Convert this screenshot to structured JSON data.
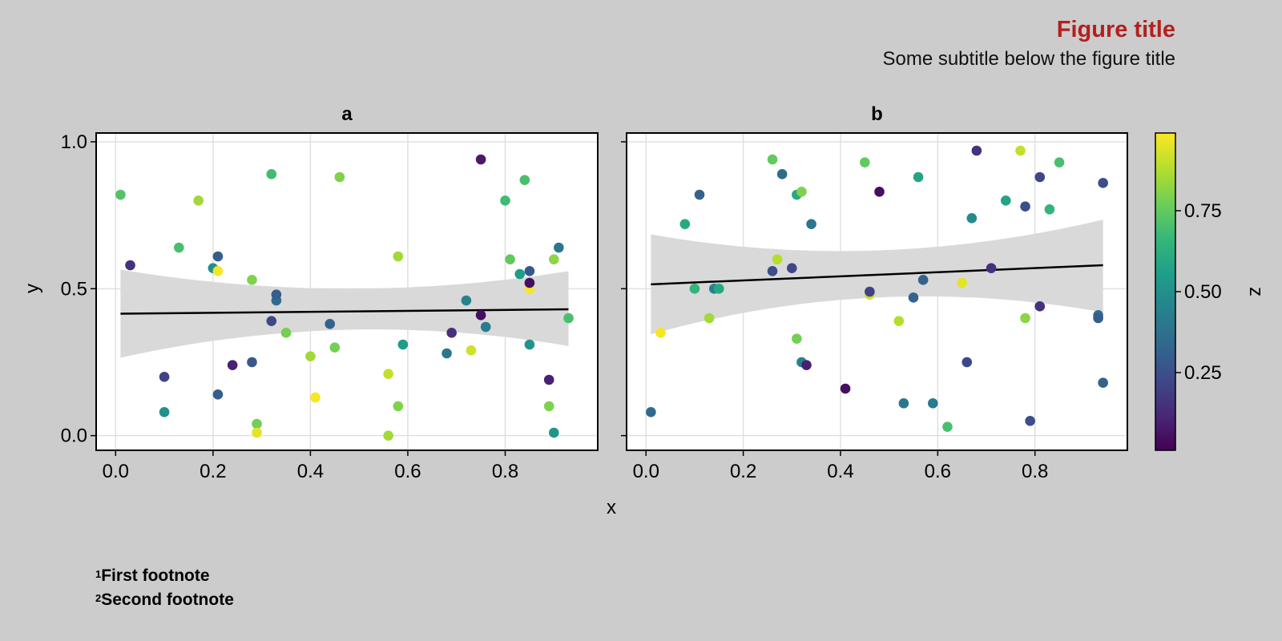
{
  "figure": {
    "title": "Figure title",
    "subtitle": "Some subtitle below the figure title",
    "footnotes": [
      {
        "mark": "1",
        "text": "First footnote"
      },
      {
        "mark": "2",
        "text": "Second footnote"
      }
    ]
  },
  "colors": {
    "background": "#cccccc",
    "panel": "#ffffff",
    "title": "#b3201f",
    "regression_line": "#000000",
    "confidence_band": "#d9d9d9",
    "grid": "#e0e0e0",
    "colormap": [
      "#440154",
      "#482878",
      "#3e4989",
      "#31688e",
      "#26828e",
      "#1f9e89",
      "#35b779",
      "#6ece58",
      "#b5de2b",
      "#fde725"
    ]
  },
  "chart_data": [
    {
      "type": "scatter",
      "panel_title": "a",
      "xlabel": "x",
      "ylabel": "y",
      "xlim": [
        -0.04,
        0.99
      ],
      "ylim": [
        -0.05,
        1.03
      ],
      "xticks": [
        "0.0",
        "0.2",
        "0.4",
        "0.6",
        "0.8"
      ],
      "xtick_values": [
        0.0,
        0.2,
        0.4,
        0.6,
        0.8
      ],
      "yticks": [
        "0.0",
        "0.5",
        "1.0"
      ],
      "ytick_values": [
        0.0,
        0.5,
        1.0
      ],
      "grid": true,
      "regression": {
        "x": [
          0.01,
          0.93
        ],
        "y": [
          0.415,
          0.43
        ],
        "band_lower": [
          0.265,
          0.36,
          0.305
        ],
        "band_upper": [
          0.565,
          0.5,
          0.56
        ],
        "band_x": [
          0.01,
          0.47,
          0.93
        ]
      },
      "points": [
        {
          "x": 0.01,
          "y": 0.82,
          "z": 0.72
        },
        {
          "x": 0.03,
          "y": 0.58,
          "z": 0.15
        },
        {
          "x": 0.1,
          "y": 0.2,
          "z": 0.2
        },
        {
          "x": 0.1,
          "y": 0.08,
          "z": 0.5
        },
        {
          "x": 0.13,
          "y": 0.64,
          "z": 0.7
        },
        {
          "x": 0.17,
          "y": 0.8,
          "z": 0.85
        },
        {
          "x": 0.2,
          "y": 0.57,
          "z": 0.5
        },
        {
          "x": 0.21,
          "y": 0.61,
          "z": 0.3
        },
        {
          "x": 0.21,
          "y": 0.14,
          "z": 0.3
        },
        {
          "x": 0.21,
          "y": 0.56,
          "z": 0.98
        },
        {
          "x": 0.24,
          "y": 0.24,
          "z": 0.1
        },
        {
          "x": 0.28,
          "y": 0.53,
          "z": 0.8
        },
        {
          "x": 0.28,
          "y": 0.25,
          "z": 0.28
        },
        {
          "x": 0.29,
          "y": 0.04,
          "z": 0.78
        },
        {
          "x": 0.29,
          "y": 0.01,
          "z": 0.95
        },
        {
          "x": 0.32,
          "y": 0.89,
          "z": 0.68
        },
        {
          "x": 0.32,
          "y": 0.39,
          "z": 0.22
        },
        {
          "x": 0.33,
          "y": 0.46,
          "z": 0.35
        },
        {
          "x": 0.33,
          "y": 0.48,
          "z": 0.3
        },
        {
          "x": 0.35,
          "y": 0.35,
          "z": 0.78
        },
        {
          "x": 0.4,
          "y": 0.27,
          "z": 0.85
        },
        {
          "x": 0.41,
          "y": 0.13,
          "z": 0.98
        },
        {
          "x": 0.44,
          "y": 0.38,
          "z": 0.32
        },
        {
          "x": 0.45,
          "y": 0.3,
          "z": 0.78
        },
        {
          "x": 0.46,
          "y": 0.88,
          "z": 0.8
        },
        {
          "x": 0.56,
          "y": 0.21,
          "z": 0.9
        },
        {
          "x": 0.56,
          "y": 0.0,
          "z": 0.85
        },
        {
          "x": 0.58,
          "y": 0.61,
          "z": 0.85
        },
        {
          "x": 0.58,
          "y": 0.1,
          "z": 0.8
        },
        {
          "x": 0.59,
          "y": 0.31,
          "z": 0.55
        },
        {
          "x": 0.68,
          "y": 0.28,
          "z": 0.4
        },
        {
          "x": 0.69,
          "y": 0.35,
          "z": 0.15
        },
        {
          "x": 0.72,
          "y": 0.46,
          "z": 0.45
        },
        {
          "x": 0.73,
          "y": 0.29,
          "z": 0.92
        },
        {
          "x": 0.75,
          "y": 0.94,
          "z": 0.08
        },
        {
          "x": 0.75,
          "y": 0.41,
          "z": 0.05
        },
        {
          "x": 0.76,
          "y": 0.37,
          "z": 0.42
        },
        {
          "x": 0.8,
          "y": 0.8,
          "z": 0.68
        },
        {
          "x": 0.81,
          "y": 0.6,
          "z": 0.75
        },
        {
          "x": 0.83,
          "y": 0.55,
          "z": 0.55
        },
        {
          "x": 0.84,
          "y": 0.87,
          "z": 0.7
        },
        {
          "x": 0.85,
          "y": 0.31,
          "z": 0.52
        },
        {
          "x": 0.85,
          "y": 0.5,
          "z": 0.98
        },
        {
          "x": 0.85,
          "y": 0.56,
          "z": 0.28
        },
        {
          "x": 0.85,
          "y": 0.52,
          "z": 0.05
        },
        {
          "x": 0.89,
          "y": 0.19,
          "z": 0.1
        },
        {
          "x": 0.89,
          "y": 0.1,
          "z": 0.8
        },
        {
          "x": 0.9,
          "y": 0.01,
          "z": 0.52
        },
        {
          "x": 0.9,
          "y": 0.6,
          "z": 0.82
        },
        {
          "x": 0.91,
          "y": 0.64,
          "z": 0.4
        },
        {
          "x": 0.93,
          "y": 0.4,
          "z": 0.7
        }
      ]
    },
    {
      "type": "scatter",
      "panel_title": "b",
      "xlabel": "",
      "ylabel": "",
      "xlim": [
        -0.04,
        0.99
      ],
      "ylim": [
        -0.05,
        1.03
      ],
      "xticks": [
        "0.0",
        "0.2",
        "0.4",
        "0.6",
        "0.8"
      ],
      "xtick_values": [
        0.0,
        0.2,
        0.4,
        0.6,
        0.8
      ],
      "yticks": [],
      "ytick_values": [
        0.0,
        0.5,
        1.0
      ],
      "grid": true,
      "regression": {
        "x": [
          0.01,
          0.94
        ],
        "y": [
          0.515,
          0.58
        ],
        "band_lower": [
          0.345,
          0.47,
          0.42
        ],
        "band_upper": [
          0.685,
          0.63,
          0.735
        ],
        "band_x": [
          0.01,
          0.47,
          0.94
        ]
      },
      "points": [
        {
          "x": 0.01,
          "y": 0.08,
          "z": 0.35
        },
        {
          "x": 0.03,
          "y": 0.35,
          "z": 0.98
        },
        {
          "x": 0.08,
          "y": 0.72,
          "z": 0.6
        },
        {
          "x": 0.1,
          "y": 0.5,
          "z": 0.65
        },
        {
          "x": 0.11,
          "y": 0.82,
          "z": 0.32
        },
        {
          "x": 0.13,
          "y": 0.4,
          "z": 0.85
        },
        {
          "x": 0.14,
          "y": 0.5,
          "z": 0.45
        },
        {
          "x": 0.15,
          "y": 0.5,
          "z": 0.6
        },
        {
          "x": 0.26,
          "y": 0.94,
          "z": 0.75
        },
        {
          "x": 0.26,
          "y": 0.56,
          "z": 0.25
        },
        {
          "x": 0.27,
          "y": 0.6,
          "z": 0.88
        },
        {
          "x": 0.28,
          "y": 0.89,
          "z": 0.35
        },
        {
          "x": 0.3,
          "y": 0.57,
          "z": 0.22
        },
        {
          "x": 0.31,
          "y": 0.33,
          "z": 0.78
        },
        {
          "x": 0.31,
          "y": 0.82,
          "z": 0.6
        },
        {
          "x": 0.32,
          "y": 0.83,
          "z": 0.8
        },
        {
          "x": 0.32,
          "y": 0.25,
          "z": 0.45
        },
        {
          "x": 0.33,
          "y": 0.24,
          "z": 0.1
        },
        {
          "x": 0.34,
          "y": 0.72,
          "z": 0.4
        },
        {
          "x": 0.41,
          "y": 0.16,
          "z": 0.05
        },
        {
          "x": 0.45,
          "y": 0.93,
          "z": 0.75
        },
        {
          "x": 0.46,
          "y": 0.48,
          "z": 0.92
        },
        {
          "x": 0.46,
          "y": 0.49,
          "z": 0.2
        },
        {
          "x": 0.48,
          "y": 0.83,
          "z": 0.05
        },
        {
          "x": 0.52,
          "y": 0.39,
          "z": 0.88
        },
        {
          "x": 0.53,
          "y": 0.11,
          "z": 0.4
        },
        {
          "x": 0.55,
          "y": 0.47,
          "z": 0.32
        },
        {
          "x": 0.56,
          "y": 0.88,
          "z": 0.58
        },
        {
          "x": 0.57,
          "y": 0.53,
          "z": 0.32
        },
        {
          "x": 0.59,
          "y": 0.11,
          "z": 0.42
        },
        {
          "x": 0.62,
          "y": 0.03,
          "z": 0.7
        },
        {
          "x": 0.65,
          "y": 0.52,
          "z": 0.95
        },
        {
          "x": 0.66,
          "y": 0.25,
          "z": 0.22
        },
        {
          "x": 0.67,
          "y": 0.74,
          "z": 0.48
        },
        {
          "x": 0.68,
          "y": 0.97,
          "z": 0.15
        },
        {
          "x": 0.71,
          "y": 0.57,
          "z": 0.15
        },
        {
          "x": 0.74,
          "y": 0.8,
          "z": 0.58
        },
        {
          "x": 0.77,
          "y": 0.97,
          "z": 0.9
        },
        {
          "x": 0.78,
          "y": 0.78,
          "z": 0.25
        },
        {
          "x": 0.78,
          "y": 0.4,
          "z": 0.82
        },
        {
          "x": 0.79,
          "y": 0.05,
          "z": 0.25
        },
        {
          "x": 0.81,
          "y": 0.88,
          "z": 0.22
        },
        {
          "x": 0.81,
          "y": 0.44,
          "z": 0.15
        },
        {
          "x": 0.83,
          "y": 0.77,
          "z": 0.65
        },
        {
          "x": 0.85,
          "y": 0.93,
          "z": 0.7
        },
        {
          "x": 0.93,
          "y": 0.41,
          "z": 0.35
        },
        {
          "x": 0.93,
          "y": 0.4,
          "z": 0.3
        },
        {
          "x": 0.94,
          "y": 0.18,
          "z": 0.32
        },
        {
          "x": 0.94,
          "y": 0.86,
          "z": 0.25
        }
      ]
    }
  ],
  "colorbar": {
    "label": "z",
    "range": [
      0.01,
      0.99
    ],
    "ticks": [
      "0.25",
      "0.50",
      "0.75"
    ],
    "tick_values": [
      0.25,
      0.5,
      0.75
    ]
  }
}
